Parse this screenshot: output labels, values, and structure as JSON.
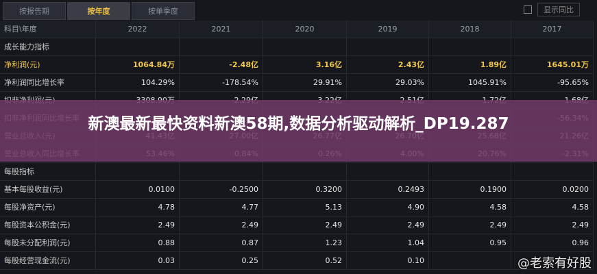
{
  "tabs": [
    "按报告期",
    "按年度",
    "按单季度"
  ],
  "active_tab": 1,
  "checkbox_label": "显示同比",
  "table": {
    "header": [
      "科目\\年度",
      "2022",
      "2021",
      "2020",
      "2019",
      "2018",
      "2017"
    ],
    "sections": [
      {
        "title": "成长能力指标",
        "rows": [
          {
            "label": "净利润(元)",
            "highlight": true,
            "values": [
              "1064.84万",
              "-2.48亿",
              "3.16亿",
              "2.43亿",
              "1.89亿",
              "1645.01万"
            ]
          },
          {
            "label": "净利润同比增长率",
            "values": [
              "104.29%",
              "-178.54%",
              "29.91%",
              "29.03%",
              "1045.91%",
              "-95.65%"
            ]
          },
          {
            "label": "扣非净利润(元)",
            "values": [
              "3308.90万",
              "-2.29亿",
              "3.22亿",
              "2.51亿",
              "1.72亿",
              "1.68亿"
            ]
          },
          {
            "label": "扣非净利润同比增长率",
            "values": [
              null,
              null,
              null,
              null,
              null,
              "-56.34%"
            ]
          },
          {
            "label": "营业总收入(元)",
            "values": [
              "41.43亿",
              "27.00亿",
              "26.77亿",
              "26.70亿",
              "25.68亿",
              "21.26亿"
            ]
          },
          {
            "label": "营业总收入同比增长率",
            "values": [
              "53.46%",
              "0.84%",
              "0.26%",
              "4.00%",
              "20.76%",
              "-2.31%"
            ]
          }
        ]
      },
      {
        "title": "每股指标",
        "rows": [
          {
            "label": "基本每股收益(元)",
            "values": [
              "0.0100",
              "-0.2500",
              "0.3200",
              "0.2493",
              "0.1900",
              "0.0200"
            ]
          },
          {
            "label": "每股净资产(元)",
            "values": [
              "4.78",
              "4.77",
              "5.13",
              "4.90",
              "4.58",
              "4.58"
            ]
          },
          {
            "label": "每股资本公积金(元)",
            "values": [
              "2.49",
              "2.49",
              "2.49",
              "2.49",
              "2.49",
              "2.49"
            ]
          },
          {
            "label": "每股未分配利润(元)",
            "values": [
              "0.88",
              "0.87",
              "1.23",
              "1.04",
              "0.95",
              "0.96"
            ]
          },
          {
            "label": "每股经营现金流(元)",
            "values": [
              "0.03",
              "0.25",
              "0.52",
              "0.10",
              null,
              null
            ]
          }
        ]
      }
    ]
  },
  "overlay_title": "新澳最新最快资料新澳58期,数据分析驱动解析_DP19.287",
  "watermark": "@老索有好股"
}
